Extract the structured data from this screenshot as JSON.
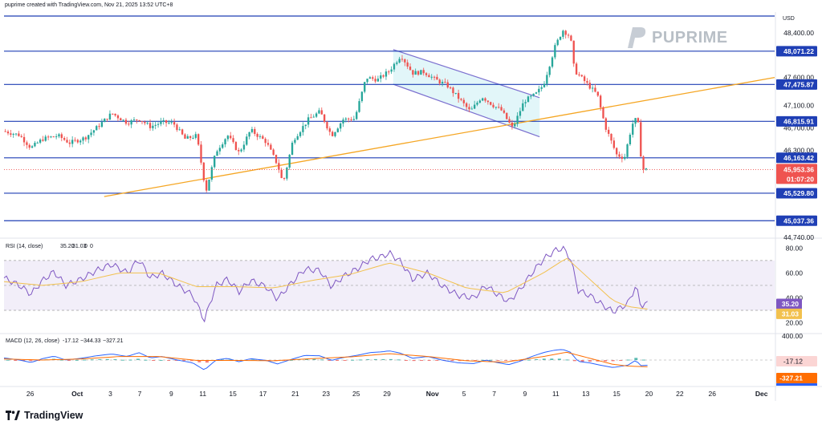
{
  "header": {
    "attribution": "puprime created with TradingView.com, Nov 21, 2025 13:52 UTC+8",
    "currency": "USD",
    "logo_text": "PUPRIME",
    "footer_brand": "TradingView"
  },
  "colors": {
    "up": "#26a69a",
    "down": "#ef5350",
    "level_line": "#1f3fb5",
    "trendline": "#f5a623",
    "channel": "#7b6fcf",
    "channel_fill": "#d6f2f7",
    "rsi_line": "#7e57c2",
    "rsi_ma": "#f2c14e",
    "macd_line": "#2962ff",
    "signal_line": "#ff6d00"
  },
  "chart_data": [
    {
      "type": "candlestick",
      "panel": "price",
      "y_axis_ticks": [
        "48,400.00",
        "47,600.00",
        "47,100.00",
        "46,700.00",
        "46,300.00",
        "44,740.00"
      ],
      "y_axis_values": [
        48400,
        47600,
        47100,
        46700,
        46300,
        44740
      ],
      "ylim": [
        44740,
        48700
      ],
      "x_tick_labels": [
        "26",
        "Oct",
        "3",
        "7",
        "9",
        "11",
        "15",
        "17",
        "21",
        "23",
        "25",
        "29",
        "Nov",
        "5",
        "7",
        "9",
        "11",
        "13",
        "15",
        "20",
        "22",
        "26",
        "Dec"
      ],
      "horizontal_levels": [
        {
          "value": 48700,
          "label": ""
        },
        {
          "value": 48071.22,
          "label": "48,071.22"
        },
        {
          "value": 47475.87,
          "label": "47,475.87"
        },
        {
          "value": 46815.91,
          "label": "46,815.91"
        },
        {
          "value": 46163.42,
          "label": "46,163.42"
        },
        {
          "value": 45529.8,
          "label": "45,529.80"
        },
        {
          "value": 45037.36,
          "label": "45,037.36"
        }
      ],
      "last_price": "45,953.36",
      "last_price_value": 45953.36,
      "countdown": "01:07:20",
      "trendline": {
        "from": [
          0.13,
          45470
        ],
        "to": [
          1.0,
          47600
        ]
      },
      "channel": {
        "upper": [
          [
            0.505,
            48100
          ],
          [
            0.695,
            47240
          ]
        ],
        "lower": [
          [
            0.505,
            47480
          ],
          [
            0.695,
            46540
          ]
        ]
      },
      "close_path": [
        [
          0.0,
          46640
        ],
        [
          0.02,
          46570
        ],
        [
          0.035,
          46340
        ],
        [
          0.05,
          46500
        ],
        [
          0.07,
          46560
        ],
        [
          0.085,
          46430
        ],
        [
          0.105,
          46520
        ],
        [
          0.12,
          46700
        ],
        [
          0.14,
          46960
        ],
        [
          0.16,
          46790
        ],
        [
          0.175,
          46860
        ],
        [
          0.19,
          46720
        ],
        [
          0.205,
          46800
        ],
        [
          0.22,
          46780
        ],
        [
          0.235,
          46500
        ],
        [
          0.25,
          46560
        ],
        [
          0.262,
          45560
        ],
        [
          0.275,
          46270
        ],
        [
          0.29,
          46570
        ],
        [
          0.305,
          46250
        ],
        [
          0.32,
          46660
        ],
        [
          0.34,
          46450
        ],
        [
          0.355,
          46040
        ],
        [
          0.362,
          45700
        ],
        [
          0.375,
          46480
        ],
        [
          0.395,
          46850
        ],
        [
          0.41,
          46990
        ],
        [
          0.425,
          46560
        ],
        [
          0.44,
          46850
        ],
        [
          0.455,
          46860
        ],
        [
          0.47,
          47600
        ],
        [
          0.485,
          47560
        ],
        [
          0.5,
          47720
        ],
        [
          0.515,
          48000
        ],
        [
          0.53,
          47680
        ],
        [
          0.545,
          47700
        ],
        [
          0.56,
          47560
        ],
        [
          0.575,
          47460
        ],
        [
          0.59,
          47230
        ],
        [
          0.605,
          46990
        ],
        [
          0.62,
          47260
        ],
        [
          0.635,
          47100
        ],
        [
          0.645,
          47020
        ],
        [
          0.66,
          46690
        ],
        [
          0.675,
          47180
        ],
        [
          0.69,
          47300
        ],
        [
          0.7,
          47470
        ],
        [
          0.715,
          48150
        ],
        [
          0.725,
          48450
        ],
        [
          0.735,
          48330
        ],
        [
          0.74,
          47730
        ],
        [
          0.755,
          47510
        ],
        [
          0.77,
          47290
        ],
        [
          0.78,
          46730
        ],
        [
          0.795,
          46220
        ],
        [
          0.805,
          46160
        ],
        [
          0.815,
          46760
        ],
        [
          0.822,
          46890
        ],
        [
          0.828,
          45960
        ],
        [
          0.835,
          45953
        ]
      ]
    },
    {
      "type": "line",
      "panel": "rsi",
      "title": "RSI (14, close)",
      "values_text": [
        "35.20",
        "31.03",
        "0",
        "0"
      ],
      "series": [
        {
          "name": "RSI",
          "last": 35.2
        },
        {
          "name": "RSI MA",
          "last": 31.03
        }
      ],
      "y_axis_ticks": [
        "80.00",
        "60.00",
        "40.00",
        "20.00"
      ],
      "y_axis_values": [
        80,
        60,
        40,
        20
      ],
      "ylim": [
        12,
        86
      ],
      "band": [
        30,
        70
      ],
      "rsi_path": [
        [
          0.0,
          56
        ],
        [
          0.02,
          50
        ],
        [
          0.035,
          43
        ],
        [
          0.05,
          54
        ],
        [
          0.065,
          61
        ],
        [
          0.08,
          50
        ],
        [
          0.1,
          55
        ],
        [
          0.12,
          62
        ],
        [
          0.14,
          67
        ],
        [
          0.16,
          60
        ],
        [
          0.175,
          71
        ],
        [
          0.19,
          56
        ],
        [
          0.205,
          60
        ],
        [
          0.225,
          50
        ],
        [
          0.245,
          42
        ],
        [
          0.26,
          22
        ],
        [
          0.275,
          50
        ],
        [
          0.29,
          55
        ],
        [
          0.305,
          45
        ],
        [
          0.32,
          54
        ],
        [
          0.34,
          49
        ],
        [
          0.355,
          39
        ],
        [
          0.37,
          50
        ],
        [
          0.39,
          63
        ],
        [
          0.41,
          62
        ],
        [
          0.425,
          49
        ],
        [
          0.44,
          57
        ],
        [
          0.46,
          64
        ],
        [
          0.475,
          71
        ],
        [
          0.49,
          73
        ],
        [
          0.5,
          76
        ],
        [
          0.515,
          69
        ],
        [
          0.53,
          55
        ],
        [
          0.55,
          60
        ],
        [
          0.57,
          49
        ],
        [
          0.59,
          42
        ],
        [
          0.61,
          40
        ],
        [
          0.625,
          50
        ],
        [
          0.64,
          43
        ],
        [
          0.655,
          37
        ],
        [
          0.67,
          47
        ],
        [
          0.685,
          60
        ],
        [
          0.7,
          71
        ],
        [
          0.715,
          78
        ],
        [
          0.725,
          80
        ],
        [
          0.735,
          72
        ],
        [
          0.745,
          46
        ],
        [
          0.76,
          42
        ],
        [
          0.775,
          35
        ],
        [
          0.79,
          29
        ],
        [
          0.8,
          32
        ],
        [
          0.81,
          36
        ],
        [
          0.82,
          50
        ],
        [
          0.826,
          34
        ],
        [
          0.835,
          35.2
        ]
      ],
      "ma_path": [
        [
          0.0,
          53
        ],
        [
          0.05,
          50
        ],
        [
          0.1,
          53
        ],
        [
          0.15,
          60
        ],
        [
          0.2,
          60
        ],
        [
          0.25,
          49
        ],
        [
          0.3,
          49
        ],
        [
          0.35,
          48
        ],
        [
          0.4,
          54
        ],
        [
          0.45,
          59
        ],
        [
          0.5,
          68
        ],
        [
          0.55,
          60
        ],
        [
          0.6,
          48
        ],
        [
          0.65,
          44
        ],
        [
          0.7,
          60
        ],
        [
          0.73,
          72
        ],
        [
          0.76,
          55
        ],
        [
          0.79,
          38
        ],
        [
          0.81,
          33
        ],
        [
          0.835,
          31.03
        ]
      ]
    },
    {
      "type": "line",
      "panel": "macd",
      "title": "MACD (12, 26, close)",
      "values_text": [
        "-17.12",
        "−344.33",
        "−327.21"
      ],
      "series": [
        {
          "name": "Histogram",
          "last": -17.12
        },
        {
          "name": "MACD",
          "last": -344.33
        },
        {
          "name": "Signal",
          "last": -327.21
        }
      ],
      "y_axis_ticks": [
        "400.00",
        "-17.12",
        "-327.21"
      ],
      "y_axis_values": [
        400,
        -17.12,
        -327.21
      ],
      "ylim": [
        -420,
        420
      ],
      "hist_samples": 84
    }
  ]
}
